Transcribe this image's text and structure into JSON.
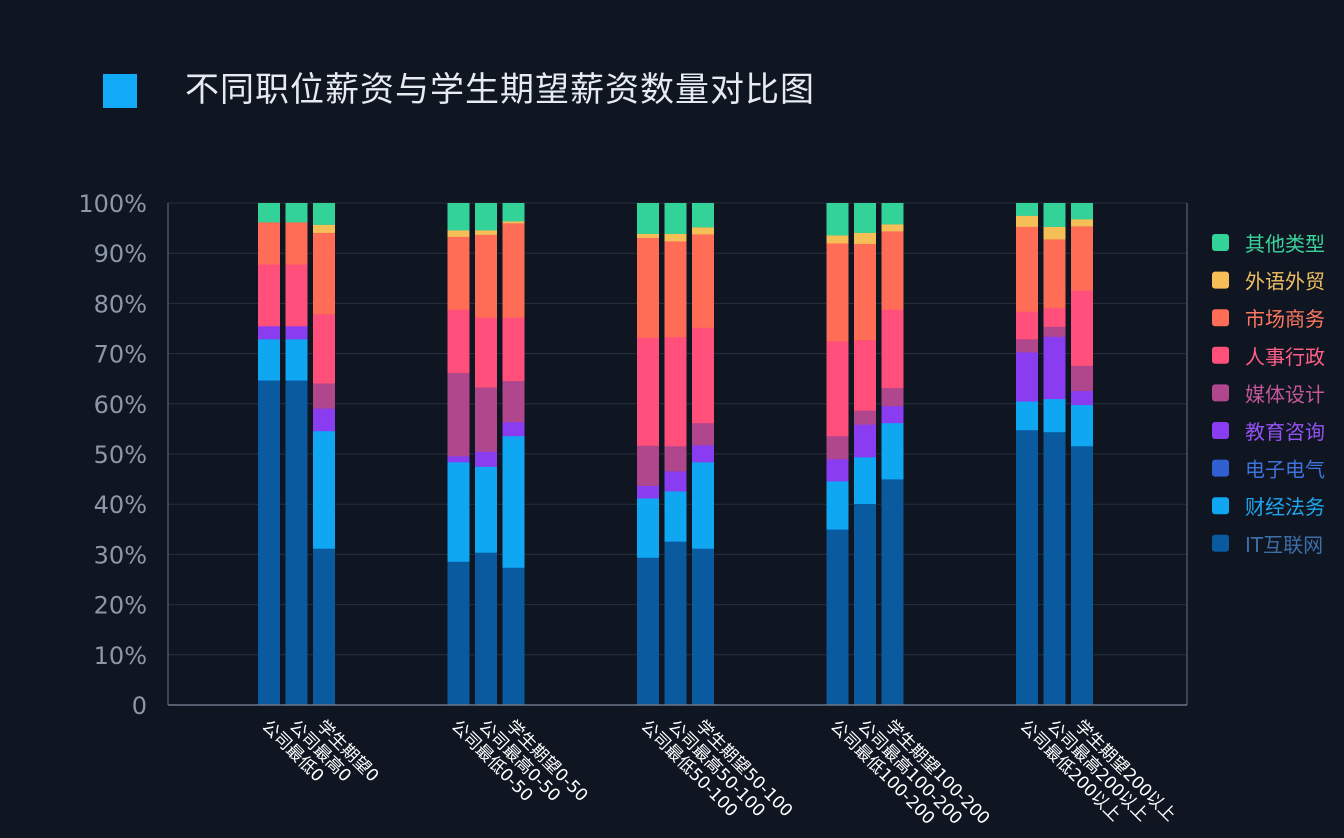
{
  "colors": {
    "title_marker": "#12a9f7",
    "series": [
      "#0a5aa0",
      "#0fa7f2",
      "#2f5fd0",
      "#8a3df0",
      "#b0478c",
      "#ff4f7a",
      "#ff6d57",
      "#f5be57",
      "#33d299"
    ],
    "legend_text": [
      "#3c6ea8",
      "#1fa7f0",
      "#3f73dc",
      "#9652f4",
      "#c4589a",
      "#ff5f86",
      "#ff7960",
      "#f0c060",
      "#3ad39c"
    ]
  },
  "chart_data": {
    "type": "bar",
    "stacked": true,
    "normalized": true,
    "title": "不同职位薪资与学生期望薪资数量对比图",
    "y_ticks": [
      "0",
      "10%",
      "20%",
      "30%",
      "40%",
      "50%",
      "60%",
      "70%",
      "80%",
      "90%",
      "100%"
    ],
    "ylim": [
      0,
      100
    ],
    "legend_position": "right",
    "groups": [
      {
        "categories": [
          "公司最低0",
          "公司最高0",
          "学生期望0"
        ]
      },
      {
        "categories": [
          "公司最低0-50",
          "公司最高0-50",
          "学生期望0-50"
        ]
      },
      {
        "categories": [
          "公司最低50-100",
          "公司最高50-100",
          "学生期望50-100"
        ]
      },
      {
        "categories": [
          "公司最低100-200",
          "公司最高100-200",
          "学生期望100-200"
        ]
      },
      {
        "categories": [
          "公司最低200以上",
          "公司最高200以上",
          "学生期望200以上"
        ]
      }
    ],
    "series": [
      {
        "name": "IT互联网",
        "values": [
          64.7,
          64.7,
          31.2,
          28.6,
          30.4,
          27.4,
          29.4,
          32.6,
          31.2,
          35.0,
          40.1,
          45.0,
          54.8,
          54.4,
          51.6
        ]
      },
      {
        "name": "财经法务",
        "values": [
          8.2,
          8.2,
          23.4,
          19.8,
          17.1,
          26.2,
          11.8,
          10.0,
          17.2,
          9.6,
          9.3,
          11.2,
          5.7,
          6.6,
          8.2
        ]
      },
      {
        "name": "电子电气",
        "values": [
          0,
          0,
          0,
          0,
          0,
          0,
          0,
          0,
          0,
          0,
          0,
          0,
          0,
          0,
          0
        ]
      },
      {
        "name": "教育咨询",
        "values": [
          2.6,
          2.6,
          4.5,
          1.2,
          3.0,
          2.8,
          2.5,
          4.0,
          3.4,
          4.4,
          6.5,
          3.4,
          9.8,
          12.4,
          2.8
        ]
      },
      {
        "name": "媒体设计",
        "values": [
          0,
          0,
          5.0,
          16.6,
          12.8,
          8.2,
          8.0,
          5.0,
          4.4,
          4.6,
          2.8,
          3.6,
          2.6,
          2.0,
          5.0
        ]
      },
      {
        "name": "人事行政",
        "values": [
          12.3,
          12.3,
          13.8,
          12.6,
          13.9,
          12.6,
          21.5,
          21.7,
          19.0,
          18.9,
          14.0,
          15.6,
          5.5,
          3.7,
          15.0
        ]
      },
      {
        "name": "市场商务",
        "values": [
          8.4,
          8.4,
          16.2,
          14.5,
          16.5,
          18.8,
          19.9,
          19.1,
          18.6,
          19.5,
          19.2,
          15.6,
          16.9,
          13.7,
          12.8
        ]
      },
      {
        "name": "外语外贸",
        "values": [
          0,
          0,
          1.6,
          1.3,
          0.9,
          0.4,
          0.8,
          1.5,
          1.4,
          1.6,
          2.2,
          1.4,
          2.2,
          2.5,
          1.4
        ]
      },
      {
        "name": "其他类型",
        "values": [
          3.8,
          3.8,
          4.3,
          5.4,
          5.4,
          3.6,
          6.1,
          6.1,
          4.8,
          6.4,
          5.9,
          4.2,
          2.5,
          4.7,
          3.2
        ]
      }
    ]
  }
}
